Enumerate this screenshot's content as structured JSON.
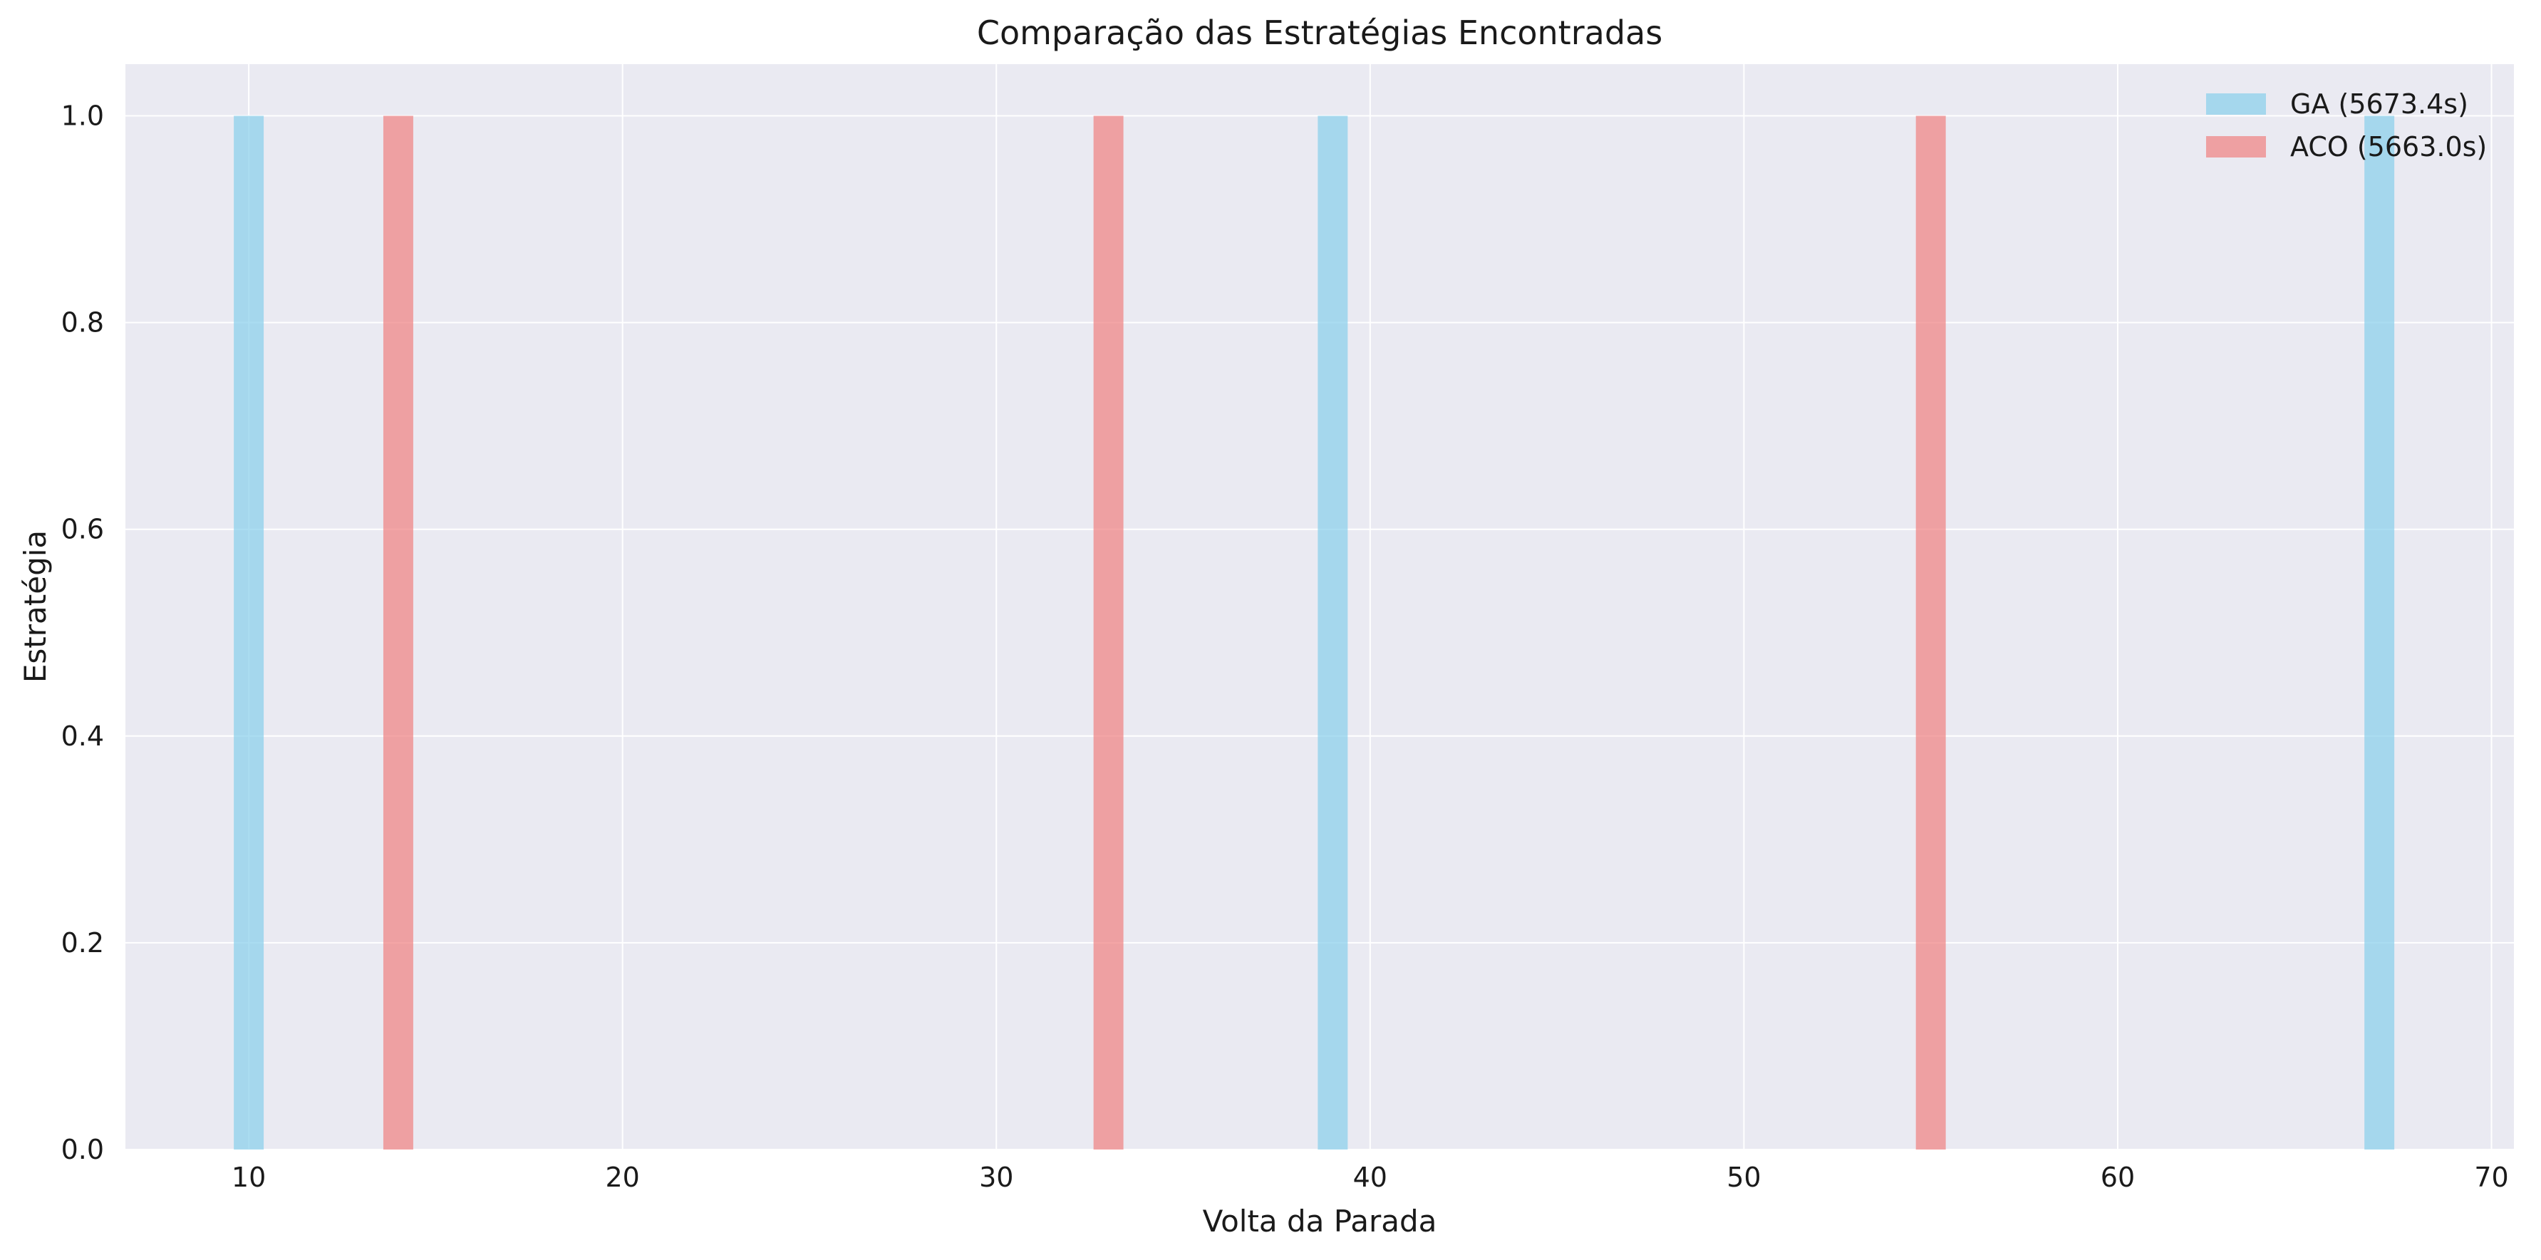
{
  "chart_data": {
    "type": "bar",
    "title": "Comparação das Estratégias Encontradas",
    "xlabel": "Volta da Parada",
    "ylabel": "Estratégia",
    "xlim": [
      6.7,
      70.6
    ],
    "ylim": [
      0,
      1.05
    ],
    "xticks": [
      10,
      20,
      30,
      40,
      50,
      60,
      70
    ],
    "yticks": [
      "0.0",
      "0.2",
      "0.4",
      "0.6",
      "0.8",
      "1.0"
    ],
    "grid": true,
    "legend_position": "top-right",
    "bar_width": 0.8,
    "series": [
      {
        "name": "GA (5673.4s)",
        "color": "#87ceeb",
        "x": [
          10,
          39,
          67
        ],
        "values": [
          1,
          1,
          1
        ]
      },
      {
        "name": "ACO (5663.0s)",
        "color": "#f08080",
        "x": [
          14,
          33,
          55
        ],
        "values": [
          1,
          1,
          1
        ]
      }
    ]
  },
  "colors": {
    "plot_background": "#eaeaf2",
    "grid": "#ffffff"
  }
}
